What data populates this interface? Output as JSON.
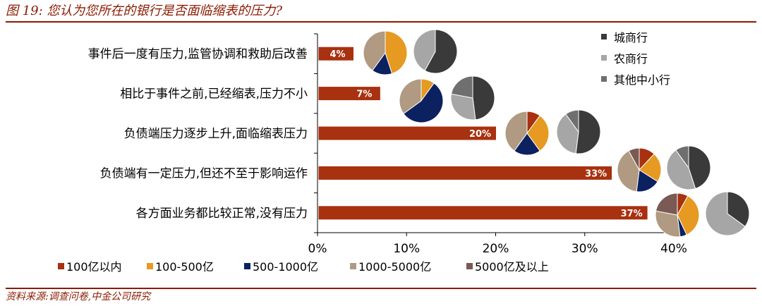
{
  "title": "图 19:  您认为您所在的银行是否面临缩表的压力?",
  "source": "资料来源:调查问卷,中金公司研究",
  "colors": {
    "bar": "#A8310F",
    "axis": "#000000",
    "size_colors": [
      "#A8310F",
      "#E69A22",
      "#0B2160",
      "#B09A82",
      "#7A5A54"
    ],
    "type_colors": [
      "#3A3A3A",
      "#A6A6A6",
      "#6F6F6F"
    ]
  },
  "chart_data": {
    "type": "bar",
    "orientation": "horizontal",
    "title": "您认为您所在的银行是否面临缩表的压力?",
    "categories": [
      "事件后一度有压力,监管协调和救助后改善",
      "相比于事件之前,已经缩表,压力不小",
      "负债端压力逐步上升,面临缩表压力",
      "负债端有一定压力,但还不至于影响运作",
      "各方面业务都比较正常,没有压力"
    ],
    "values": [
      4,
      7,
      20,
      33,
      37
    ],
    "data_labels": [
      "4%",
      "7%",
      "20%",
      "33%",
      "37%"
    ],
    "xlim": [
      0,
      40
    ],
    "xticks": [
      "0%",
      "10%",
      "20%",
      "30%",
      "40%"
    ],
    "xtick_values": [
      0,
      10,
      20,
      30,
      40
    ],
    "legend_bottom": [
      "100亿以内",
      "100-500亿",
      "500-1000亿",
      "1000-5000亿",
      "5000亿及以上"
    ],
    "legend_right": [
      "城商行",
      "农商行",
      "其他中小行"
    ],
    "pies_by_size": [
      [
        0,
        45,
        15,
        40,
        0
      ],
      [
        0,
        10,
        55,
        35,
        0
      ],
      [
        10,
        30,
        20,
        40,
        0
      ],
      [
        12,
        22,
        18,
        40,
        8
      ],
      [
        8,
        35,
        5,
        30,
        22
      ]
    ],
    "pies_by_type": [
      [
        58,
        42,
        0
      ],
      [
        48,
        30,
        22
      ],
      [
        52,
        38,
        10
      ],
      [
        45,
        45,
        10
      ],
      [
        35,
        65,
        0
      ]
    ]
  }
}
